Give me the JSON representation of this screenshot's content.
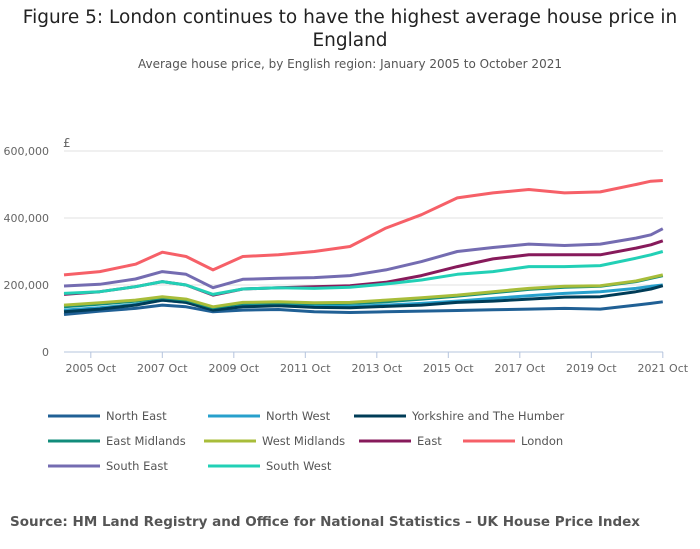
{
  "chart_data": {
    "type": "line",
    "title": "Figure 5: London continues to have the highest average house price in England",
    "subtitle": "Average house price, by English region: January 2005 to October 2021",
    "ylabel": "£",
    "xlabel": "",
    "ylim": [
      0,
      600000
    ],
    "yticks": [
      "0",
      "200,000",
      "400,000",
      "600,000"
    ],
    "xticks": [
      "2005 Oct",
      "2007 Oct",
      "2009 Oct",
      "2011 Oct",
      "2013 Oct",
      "2015 Oct",
      "2017 Oct",
      "2019 Oct",
      "2021 Oct"
    ],
    "grid": true,
    "legend": "bottom",
    "x": [
      "2005-01",
      "2006-01",
      "2007-01",
      "2007-10",
      "2008-06",
      "2009-03",
      "2010-01",
      "2011-01",
      "2012-01",
      "2013-01",
      "2014-01",
      "2015-01",
      "2016-01",
      "2017-01",
      "2018-01",
      "2019-01",
      "2020-01",
      "2021-01",
      "2021-06",
      "2021-10"
    ],
    "series": [
      {
        "name": "North East",
        "color": "#206095",
        "values": [
          112000,
          122000,
          130000,
          140000,
          135000,
          120000,
          125000,
          127000,
          120000,
          118000,
          120000,
          122000,
          124000,
          126000,
          128000,
          130000,
          128000,
          140000,
          145000,
          150000
        ]
      },
      {
        "name": "North West",
        "color": "#27a0cc",
        "values": [
          125000,
          132000,
          142000,
          155000,
          148000,
          128000,
          137000,
          140000,
          137000,
          136000,
          140000,
          145000,
          152000,
          160000,
          168000,
          175000,
          180000,
          190000,
          196000,
          200000
        ]
      },
      {
        "name": "Yorkshire and The Humber",
        "color": "#003c57",
        "values": [
          120000,
          128000,
          140000,
          155000,
          148000,
          125000,
          135000,
          138000,
          133000,
          132000,
          136000,
          140000,
          148000,
          152000,
          158000,
          164000,
          165000,
          180000,
          188000,
          198000
        ]
      },
      {
        "name": "East Midlands",
        "color": "#118c7b",
        "values": [
          135000,
          143000,
          152000,
          162000,
          155000,
          132000,
          145000,
          147000,
          144000,
          145000,
          150000,
          158000,
          167000,
          177000,
          187000,
          193000,
          196000,
          210000,
          220000,
          228000
        ]
      },
      {
        "name": "West Midlands",
        "color": "#a8bd3a",
        "values": [
          140000,
          147000,
          155000,
          165000,
          158000,
          135000,
          148000,
          150000,
          147000,
          148000,
          155000,
          162000,
          170000,
          180000,
          190000,
          196000,
          198000,
          212000,
          222000,
          230000
        ]
      },
      {
        "name": "East",
        "color": "#871a5b",
        "values": [
          172000,
          180000,
          195000,
          210000,
          200000,
          170000,
          188000,
          192000,
          195000,
          198000,
          208000,
          228000,
          255000,
          278000,
          290000,
          290000,
          290000,
          310000,
          320000,
          332000
        ]
      },
      {
        "name": "London",
        "color": "#f66068",
        "values": [
          230000,
          240000,
          262000,
          298000,
          285000,
          245000,
          285000,
          290000,
          300000,
          315000,
          370000,
          410000,
          460000,
          475000,
          485000,
          475000,
          478000,
          500000,
          510000,
          512000
        ]
      },
      {
        "name": "South East",
        "color": "#746cb1",
        "values": [
          197000,
          202000,
          218000,
          240000,
          232000,
          192000,
          217000,
          220000,
          222000,
          228000,
          245000,
          270000,
          300000,
          312000,
          322000,
          318000,
          322000,
          340000,
          350000,
          368000
        ]
      },
      {
        "name": "South West",
        "color": "#22d0b6",
        "values": [
          175000,
          180000,
          195000,
          210000,
          200000,
          172000,
          188000,
          192000,
          190000,
          193000,
          203000,
          215000,
          232000,
          240000,
          255000,
          255000,
          258000,
          280000,
          290000,
          300000
        ]
      }
    ]
  },
  "source": "Source: HM Land Registry and Office for National Statistics – UK House Price Index"
}
